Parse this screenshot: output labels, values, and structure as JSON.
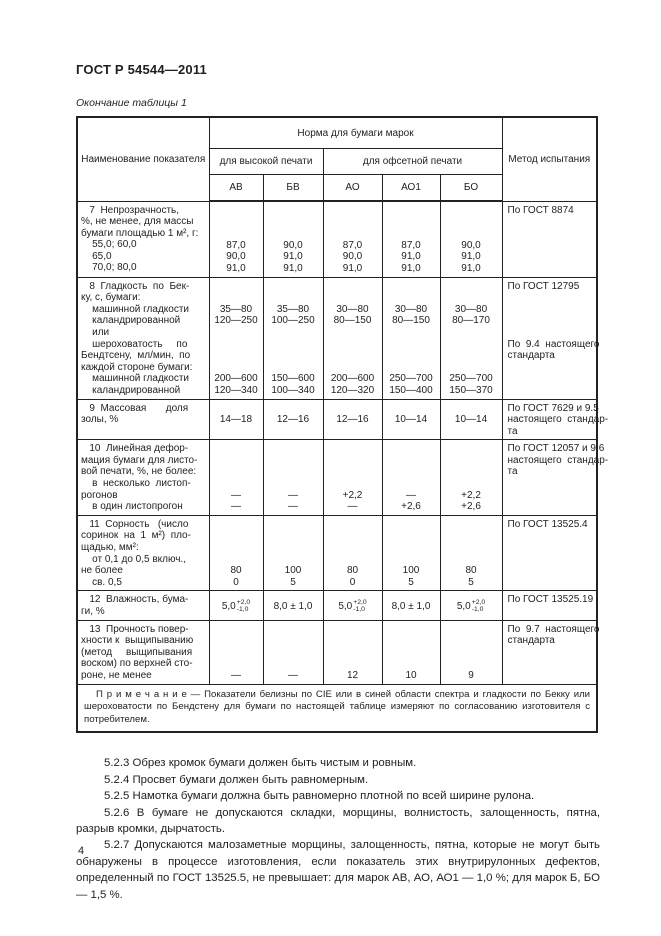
{
  "page": {
    "doc_code": "ГОСТ Р 54544—2011",
    "table_caption": "Окончание таблицы 1",
    "page_number": "4"
  },
  "table": {
    "header": {
      "col_name": "Наименование показателя",
      "norm_group": "Норма для бумаги марок",
      "group_high": "для высокой печати",
      "group_offset": "для офсетной печати",
      "marks": [
        "АВ",
        "БВ",
        "АО",
        "АО1",
        "БО"
      ],
      "col_method": "Метод испытания"
    },
    "rows": [
      {
        "name_lines": [
          "   7  Непрозрачность,",
          "%, не менее, для массы",
          "бумаги площадью 1 м², г:",
          "    55,0; 60,0",
          "    65,0",
          "    70,0; 80,0"
        ],
        "cols": [
          [
            "",
            "",
            "",
            "87,0",
            "90,0",
            "91,0"
          ],
          [
            "",
            "",
            "",
            "90,0",
            "91,0",
            "91,0"
          ],
          [
            "",
            "",
            "",
            "87,0",
            "90,0",
            "91,0"
          ],
          [
            "",
            "",
            "",
            "87,0",
            "91,0",
            "91,0"
          ],
          [
            "",
            "",
            "",
            "90,0",
            "91,0",
            "91,0"
          ]
        ],
        "method_lines": [
          "По ГОСТ 8874"
        ]
      },
      {
        "name_lines": [
          "   8  Гладкость  по  Бек-",
          "ку, с, бумаги:",
          "    машинной гладкости",
          "    каландрированной",
          "    или",
          "    шероховатость     по",
          "Бендтсену,  мл/мин,  по",
          "каждой стороне бумаги:",
          "    машинной гладкости",
          "    каландрированной"
        ],
        "cols": [
          [
            "",
            "",
            "35—80",
            "120—250",
            "",
            "",
            "",
            "",
            "200—600",
            "120—340"
          ],
          [
            "",
            "",
            "35—80",
            "100—250",
            "",
            "",
            "",
            "",
            "150—600",
            "100—340"
          ],
          [
            "",
            "",
            "30—80",
            "80—150",
            "",
            "",
            "",
            "",
            "200—600",
            "120—320"
          ],
          [
            "",
            "",
            "30—80",
            "80—150",
            "",
            "",
            "",
            "",
            "250—700",
            "150—400"
          ],
          [
            "",
            "",
            "30—80",
            "80—170",
            "",
            "",
            "",
            "",
            "250—700",
            "150—370"
          ]
        ],
        "method_lines": [
          "По ГОСТ 12795",
          "",
          "",
          "",
          "",
          "По  9.4  настоящего",
          "стандарта"
        ]
      },
      {
        "name_lines": [
          "   9  Массовая       доля",
          "золы, %"
        ],
        "valign": "middle",
        "cols": [
          "14—18",
          "12—16",
          "12—16",
          "10—14",
          "10—14"
        ],
        "method_lines": [
          "По ГОСТ 7629 и 9.5",
          "настоящего  стандар-",
          "та"
        ]
      },
      {
        "name_lines": [
          "   10  Линейная дефор-",
          "мация бумаги для листо-",
          "вой печати, %, не более:",
          "    в  несколько  листоп-",
          "рогонов",
          "    в один листопрогон"
        ],
        "cols": [
          [
            "",
            "",
            "",
            "",
            "—",
            "—"
          ],
          [
            "",
            "",
            "",
            "",
            "—",
            "—"
          ],
          [
            "",
            "",
            "",
            "",
            "+2,2",
            "—"
          ],
          [
            "",
            "",
            "",
            "",
            "—",
            "+2,6"
          ],
          [
            "",
            "",
            "",
            "",
            "+2,2",
            "+2,6"
          ]
        ],
        "method_lines": [
          "По ГОСТ 12057 и 9.6",
          "настоящего  стандар-",
          "та"
        ]
      },
      {
        "name_lines": [
          "   11  Сорность   (число",
          "соринок  на  1  м²)  пло-",
          "щадью, мм²:",
          "    от 0,1 до 0,5 включ.,",
          "не более",
          "    св. 0,5"
        ],
        "cols": [
          [
            "",
            "",
            "",
            "",
            "80",
            "0"
          ],
          [
            "",
            "",
            "",
            "",
            "100",
            "5"
          ],
          [
            "",
            "",
            "",
            "",
            "80",
            "0"
          ],
          [
            "",
            "",
            "",
            "",
            "100",
            "5"
          ],
          [
            "",
            "",
            "",
            "",
            "80",
            "5"
          ]
        ],
        "method_lines": [
          "По ГОСТ 13525.4"
        ]
      },
      {
        "name_lines": [
          "   12  Влажность, бума-",
          "ги, %"
        ],
        "valign": "middle",
        "cols": [
          {
            "base": "5,0",
            "sup": "+2,0",
            "sub": "-1,0"
          },
          "8,0 ± 1,0",
          {
            "base": "5,0",
            "sup": "+2,0",
            "sub": "-1,0"
          },
          "8,0 ± 1,0",
          {
            "base": "5,0",
            "sup": "+2,0",
            "sub": "-1,0"
          }
        ],
        "method_lines": [
          "По ГОСТ 13525.19"
        ]
      },
      {
        "name_lines": [
          "   13  Прочность повер-",
          "хности к  выщипыванию",
          "(метод     выщипывания",
          "воском) по верхней сто-",
          "роне, не менее"
        ],
        "cols": [
          [
            "",
            "",
            "",
            "",
            "—"
          ],
          [
            "",
            "",
            "",
            "",
            "—"
          ],
          [
            "",
            "",
            "",
            "",
            "12"
          ],
          [
            "",
            "",
            "",
            "",
            "10"
          ],
          [
            "",
            "",
            "",
            "",
            "9"
          ]
        ],
        "method_lines": [
          "По  9.7  настоящего",
          "стандарта"
        ]
      }
    ],
    "note": "П р и м е ч а н и е — Показатели белизны по CIE или в синей области спектра и гладкости по Бекку или шероховатости по Бендстену для бумаги по настоящей таблице измеряют по согласованию изготовителя с потребителем."
  },
  "paragraphs": [
    "5.2.3  Обрез кромок бумаги должен быть чистым и ровным.",
    "5.2.4  Просвет бумаги должен быть равномерным.",
    "5.2.5  Намотка бумаги должна быть равномерно плотной по всей ширине рулона.",
    "5.2.6  В бумаге не допускаются складки, морщины, волнистость, залощенность, пятна, разрыв кромки, дырчатость.",
    "5.2.7  Допускаются малозаметные морщины, залощенность, пятна, которые не могут быть обнаружены в процессе изготовления, если показатель этих внутрирулонных дефектов, определенный по ГОСТ 13525.5, не превышает: для марок АВ, АО, АО1 — 1,0 %; для марок Б, БО — 1,5 %."
  ]
}
